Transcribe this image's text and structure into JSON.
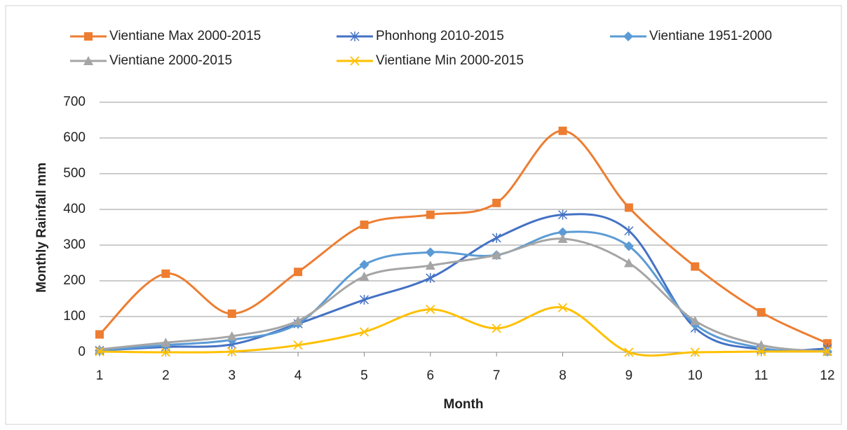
{
  "chart_data": {
    "type": "line",
    "x_label": "Month",
    "y_label": "Monthly Rainfall mm",
    "x": [
      1,
      2,
      3,
      4,
      5,
      6,
      7,
      8,
      9,
      10,
      11,
      12
    ],
    "xlim": [
      1,
      12
    ],
    "xticks": [
      1,
      2,
      3,
      4,
      5,
      6,
      7,
      8,
      9,
      10,
      11,
      12
    ],
    "ylim": [
      0,
      700
    ],
    "yticks": [
      0,
      100,
      200,
      300,
      400,
      500,
      600,
      700
    ],
    "grid": true,
    "smooth": true,
    "legend": "top",
    "series": [
      {
        "name": "Vientiane Max 2000-2015",
        "color": "#ED7D31",
        "marker": "square",
        "values": [
          50,
          220,
          108,
          225,
          357,
          385,
          418,
          620,
          405,
          240,
          112,
          25
        ]
      },
      {
        "name": "Phonhong 2010-2015",
        "color": "#4472C4",
        "marker": "star",
        "values": [
          5,
          15,
          22,
          80,
          147,
          208,
          320,
          385,
          340,
          68,
          8,
          10
        ]
      },
      {
        "name": "Vientiane 1951-2000",
        "color": "#5B9BD5",
        "marker": "diamond",
        "values": [
          5,
          20,
          35,
          80,
          245,
          280,
          272,
          336,
          297,
          78,
          12,
          2
        ]
      },
      {
        "name": "Vientiane 2000-2015",
        "color": "#A5A5A5",
        "marker": "triangle",
        "values": [
          8,
          27,
          45,
          88,
          212,
          243,
          272,
          318,
          250,
          88,
          20,
          2
        ]
      },
      {
        "name": "Vientiane Min 2000-2015",
        "color": "#FFC000",
        "marker": "x",
        "values": [
          2,
          0,
          2,
          20,
          57,
          120,
          67,
          125,
          0,
          0,
          2,
          2
        ]
      }
    ]
  }
}
